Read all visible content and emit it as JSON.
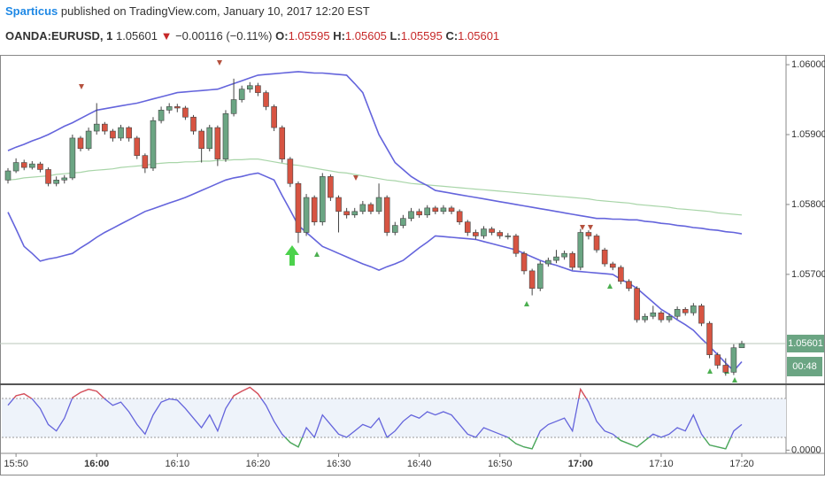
{
  "header": {
    "author": "Sparticus",
    "published": "published on TradingView.com, January 10, 2017 12:20 EST",
    "symbol": "OANDA:EURUSD, 1",
    "last": "1.05601",
    "arrow": "▼",
    "change": "−0.00116 (−0.11%)",
    "o_label": "O:",
    "o": "1.05595",
    "h_label": "H:",
    "h": "1.05605",
    "l_label": "L:",
    "l": "1.05595",
    "c_label": "C:",
    "c": "1.05601",
    "countdown": "00:48"
  },
  "chart_data": {
    "type": "candlestick",
    "up_color": "#6ba583",
    "down_color": "#d75442",
    "categories": [
      null,
      "15:50",
      null,
      null,
      null,
      null,
      null,
      null,
      null,
      null,
      null,
      "16:00",
      null,
      null,
      null,
      null,
      null,
      null,
      null,
      null,
      null,
      "16:10",
      null,
      null,
      null,
      null,
      null,
      null,
      null,
      null,
      null,
      "16:20",
      null,
      null,
      null,
      null,
      null,
      null,
      null,
      null,
      null,
      "16:30",
      null,
      null,
      null,
      null,
      null,
      null,
      null,
      null,
      null,
      "16:40",
      null,
      null,
      null,
      null,
      null,
      null,
      null,
      null,
      null,
      "16:50",
      null,
      null,
      null,
      null,
      null,
      null,
      null,
      null,
      null,
      "17:00",
      null,
      null,
      null,
      null,
      null,
      null,
      null,
      null,
      null,
      "17:10",
      null,
      null,
      null,
      null,
      null,
      null,
      null,
      null,
      null,
      "17:20"
    ],
    "open": [
      1.05835,
      1.05848,
      1.0586,
      1.05853,
      1.05858,
      1.0585,
      1.0583,
      1.05835,
      1.05838,
      1.05895,
      1.0588,
      1.05905,
      1.05915,
      1.05905,
      1.05895,
      1.0591,
      1.05895,
      1.0587,
      1.05852,
      1.0592,
      1.05935,
      1.0594,
      1.05938,
      1.05925,
      1.05905,
      1.0588,
      1.0591,
      1.05865,
      1.0593,
      1.0595,
      1.05965,
      1.0597,
      1.0596,
      1.0594,
      1.0591,
      1.05865,
      1.0583,
      1.0576,
      1.0581,
      1.05775,
      1.0584,
      1.0581,
      1.0579,
      1.05785,
      1.0579,
      1.058,
      1.0579,
      1.0581,
      1.0576,
      1.0577,
      1.0578,
      1.0579,
      1.05785,
      1.05795,
      1.0579,
      1.05795,
      1.0579,
      1.05775,
      1.0576,
      1.05755,
      1.05765,
      1.0576,
      1.05755,
      1.05755,
      1.0573,
      1.05705,
      1.0568,
      1.05715,
      1.0572,
      1.05725,
      1.0573,
      1.0571,
      1.0576,
      1.05755,
      1.05735,
      1.05715,
      1.0571,
      1.0569,
      1.0568,
      1.05635,
      1.0564,
      1.05645,
      1.05635,
      1.0564,
      1.0565,
      1.05645,
      1.05655,
      1.0563,
      1.05585,
      1.0557,
      1.0556,
      1.05595
    ],
    "high": [
      1.05852,
      1.05866,
      1.05864,
      1.05862,
      1.05861,
      1.05853,
      1.0584,
      1.05842,
      1.059,
      1.05898,
      1.0591,
      1.05945,
      1.05918,
      1.05908,
      1.05914,
      1.05912,
      1.05898,
      1.05873,
      1.05925,
      1.0594,
      1.05945,
      1.05944,
      1.05941,
      1.05928,
      1.05908,
      1.05914,
      1.05913,
      1.05935,
      1.0598,
      1.0597,
      1.05975,
      1.05974,
      1.05963,
      1.05943,
      1.05913,
      1.05868,
      1.05833,
      1.05815,
      1.05813,
      1.05845,
      1.05843,
      1.05813,
      1.05795,
      1.05795,
      1.05805,
      1.05803,
      1.0583,
      1.05813,
      1.05775,
      1.05785,
      1.05795,
      1.05794,
      1.05799,
      1.05798,
      1.05799,
      1.05798,
      1.05793,
      1.05778,
      1.05764,
      1.05769,
      1.05768,
      1.05763,
      1.05759,
      1.05758,
      1.05733,
      1.05708,
      1.05719,
      1.05724,
      1.05735,
      1.05734,
      1.05733,
      1.05765,
      1.05763,
      1.05758,
      1.05738,
      1.05718,
      1.05713,
      1.05693,
      1.05683,
      1.05644,
      1.05655,
      1.05648,
      1.05644,
      1.05654,
      1.05653,
      1.05659,
      1.05658,
      1.05633,
      1.05588,
      1.0558,
      1.056,
      1.05605
    ],
    "low": [
      1.0583,
      1.05845,
      1.05849,
      1.0585,
      1.05846,
      1.05826,
      1.05826,
      1.0583,
      1.05835,
      1.05876,
      1.05877,
      1.059,
      1.059,
      1.0589,
      1.05891,
      1.0589,
      1.05865,
      1.05845,
      1.05848,
      1.05916,
      1.0593,
      1.05932,
      1.05921,
      1.059,
      1.0586,
      1.05876,
      1.05855,
      1.05861,
      1.05926,
      1.05946,
      1.0596,
      1.05955,
      1.05935,
      1.05905,
      1.0586,
      1.05825,
      1.05745,
      1.05755,
      1.0577,
      1.0577,
      1.05805,
      1.0576,
      1.0578,
      1.05781,
      1.05786,
      1.05786,
      1.05786,
      1.05755,
      1.05756,
      1.05766,
      1.05776,
      1.05781,
      1.05781,
      1.05786,
      1.05786,
      1.05786,
      1.05771,
      1.05755,
      1.0575,
      1.05751,
      1.05756,
      1.05751,
      1.0575,
      1.05725,
      1.057,
      1.0567,
      1.05676,
      1.05711,
      1.05716,
      1.05721,
      1.05706,
      1.05706,
      1.0575,
      1.05731,
      1.05711,
      1.05706,
      1.05686,
      1.05676,
      1.05631,
      1.05631,
      1.05636,
      1.05631,
      1.05631,
      1.05636,
      1.05641,
      1.05641,
      1.05626,
      1.0558,
      1.05565,
      1.05555,
      1.05556,
      1.05595
    ],
    "close": [
      1.05848,
      1.0586,
      1.05853,
      1.05858,
      1.0585,
      1.0583,
      1.05835,
      1.05838,
      1.05895,
      1.0588,
      1.05905,
      1.05915,
      1.05905,
      1.05895,
      1.0591,
      1.05895,
      1.0587,
      1.05852,
      1.0592,
      1.05935,
      1.0594,
      1.05938,
      1.05925,
      1.05905,
      1.0588,
      1.0591,
      1.05865,
      1.0593,
      1.0595,
      1.05965,
      1.0597,
      1.0596,
      1.0594,
      1.0591,
      1.05865,
      1.0583,
      1.0576,
      1.0581,
      1.05775,
      1.0584,
      1.0581,
      1.0579,
      1.05785,
      1.0579,
      1.058,
      1.0579,
      1.0581,
      1.0576,
      1.0577,
      1.0578,
      1.0579,
      1.05785,
      1.05795,
      1.0579,
      1.05795,
      1.0579,
      1.05775,
      1.0576,
      1.05755,
      1.05765,
      1.0576,
      1.05755,
      1.05755,
      1.0573,
      1.05705,
      1.0568,
      1.05715,
      1.0572,
      1.05725,
      1.0573,
      1.0571,
      1.0576,
      1.05755,
      1.05735,
      1.05715,
      1.0571,
      1.0569,
      1.0568,
      1.05635,
      1.0564,
      1.05645,
      1.05635,
      1.0564,
      1.0565,
      1.05645,
      1.05655,
      1.0563,
      1.05585,
      1.0557,
      1.0556,
      1.05595,
      1.05601
    ],
    "lines": [
      {
        "color": "#a8d5a8",
        "values": [
          1.05835,
          1.05836,
          1.05838,
          1.05839,
          1.0584,
          1.05841,
          1.05843,
          1.05844,
          1.05845,
          1.05846,
          1.05848,
          1.05849,
          1.0585,
          1.05851,
          1.05853,
          1.05854,
          1.05855,
          1.05856,
          1.05858,
          1.05859,
          1.0586,
          1.0586,
          1.05861,
          1.05861,
          1.05862,
          1.05862,
          1.05863,
          1.05863,
          1.05864,
          1.05864,
          1.05865,
          1.05865,
          1.05863,
          1.05861,
          1.05859,
          1.05857,
          1.05856,
          1.05854,
          1.05852,
          1.0585,
          1.05848,
          1.05846,
          1.05845,
          1.05843,
          1.05841,
          1.05839,
          1.05837,
          1.05835,
          1.05834,
          1.05832,
          1.0583,
          1.05829,
          1.05828,
          1.05827,
          1.05826,
          1.05825,
          1.05824,
          1.05823,
          1.05822,
          1.05821,
          1.0582,
          1.05819,
          1.05818,
          1.05817,
          1.05816,
          1.05815,
          1.05814,
          1.05813,
          1.05812,
          1.05811,
          1.0581,
          1.05809,
          1.05808,
          1.05806,
          1.05805,
          1.05804,
          1.05803,
          1.05802,
          1.058,
          1.05799,
          1.05798,
          1.05797,
          1.05796,
          1.05794,
          1.05793,
          1.05792,
          1.05791,
          1.0579,
          1.05788,
          1.05787,
          1.05786,
          1.05785
        ]
      },
      {
        "color": "#6464dc",
        "values": [
          1.05877,
          1.05882,
          1.05886,
          1.05891,
          1.05895,
          1.059,
          1.05906,
          1.05912,
          1.05917,
          1.05923,
          1.05929,
          1.05935,
          1.05937,
          1.05939,
          1.05941,
          1.05943,
          1.05945,
          1.05948,
          1.05951,
          1.05954,
          1.05957,
          1.0596,
          1.05961,
          1.05962,
          1.05963,
          1.05964,
          1.05965,
          1.05969,
          1.05973,
          1.05977,
          1.05981,
          1.05985,
          1.05986,
          1.05987,
          1.05988,
          1.05989,
          1.0599,
          1.05989,
          1.05988,
          1.05988,
          1.05987,
          1.05986,
          1.05985,
          1.05973,
          1.0596,
          1.0593,
          1.059,
          1.0588,
          1.0586,
          1.0585,
          1.0584,
          1.05833,
          1.05827,
          1.0582,
          1.05818,
          1.05816,
          1.05814,
          1.05812,
          1.0581,
          1.05808,
          1.05806,
          1.05804,
          1.05802,
          1.058,
          1.05798,
          1.05796,
          1.05794,
          1.05792,
          1.0579,
          1.05788,
          1.05786,
          1.05784,
          1.05782,
          1.0578,
          1.0578,
          1.05779,
          1.05779,
          1.05778,
          1.05778,
          1.05776,
          1.05775,
          1.05773,
          1.05772,
          1.0577,
          1.05769,
          1.05767,
          1.05766,
          1.05764,
          1.05763,
          1.05761,
          1.0576,
          1.05758
        ]
      },
      {
        "color": "#6464dc",
        "values": [
          1.05789,
          1.05765,
          1.0574,
          1.0573,
          1.05719,
          1.05722,
          1.05724,
          1.05727,
          1.0573,
          1.05738,
          1.05745,
          1.05753,
          1.0576,
          1.05766,
          1.05772,
          1.05778,
          1.05784,
          1.0579,
          1.05794,
          1.05798,
          1.05802,
          1.05806,
          1.0581,
          1.05815,
          1.0582,
          1.05825,
          1.0583,
          1.05835,
          1.05838,
          1.0584,
          1.05843,
          1.05845,
          1.0584,
          1.05835,
          1.05813,
          1.05792,
          1.0577,
          1.0576,
          1.0575,
          1.0574,
          1.05735,
          1.0573,
          1.05725,
          1.0572,
          1.05715,
          1.05711,
          1.05706,
          1.05711,
          1.05715,
          1.0572,
          1.05729,
          1.05738,
          1.05746,
          1.05755,
          1.05754,
          1.05753,
          1.05752,
          1.05751,
          1.0575,
          1.05747,
          1.05744,
          1.05741,
          1.05738,
          1.05735,
          1.0573,
          1.05725,
          1.0572,
          1.05716,
          1.05713,
          1.05709,
          1.05705,
          1.05704,
          1.05703,
          1.05702,
          1.05701,
          1.057,
          1.05693,
          1.05687,
          1.0568,
          1.0567,
          1.0566,
          1.0565,
          1.05643,
          1.05635,
          1.05628,
          1.0562,
          1.05608,
          1.05597,
          1.05585,
          1.05573,
          1.05562,
          1.05575
        ]
      }
    ],
    "ylim": [
      1.05544,
      1.06014
    ],
    "yticks": [
      {
        "value": 1.057,
        "label": "1.05700"
      },
      {
        "value": 1.058,
        "label": "1.05800"
      },
      {
        "value": 1.059,
        "label": "1.05900"
      },
      {
        "value": 1.06,
        "label": "1.06000"
      }
    ],
    "grid": false,
    "oscillator": {
      "color": "#6464dc",
      "high_color": "#e05050",
      "low_color": "#4caf50",
      "ylim": [
        -0.05,
        1.0
      ],
      "yticks": [
        {
          "value": 0,
          "label": "0.0000"
        }
      ],
      "values": [
        0.7,
        0.85,
        0.88,
        0.8,
        0.65,
        0.4,
        0.3,
        0.5,
        0.82,
        0.9,
        0.95,
        0.92,
        0.8,
        0.7,
        0.75,
        0.6,
        0.4,
        0.25,
        0.55,
        0.75,
        0.8,
        0.78,
        0.65,
        0.5,
        0.35,
        0.55,
        0.3,
        0.65,
        0.85,
        0.92,
        0.98,
        0.88,
        0.7,
        0.45,
        0.25,
        0.12,
        0.05,
        0.35,
        0.2,
        0.55,
        0.4,
        0.25,
        0.2,
        0.3,
        0.4,
        0.35,
        0.5,
        0.2,
        0.3,
        0.45,
        0.55,
        0.5,
        0.6,
        0.55,
        0.6,
        0.55,
        0.4,
        0.25,
        0.2,
        0.35,
        0.3,
        0.25,
        0.2,
        0.1,
        0.05,
        0.02,
        0.3,
        0.4,
        0.45,
        0.5,
        0.3,
        0.95,
        0.75,
        0.45,
        0.3,
        0.25,
        0.15,
        0.1,
        0.05,
        0.15,
        0.25,
        0.2,
        0.25,
        0.35,
        0.3,
        0.55,
        0.25,
        0.08,
        0.05,
        0.02,
        0.3,
        0.4
      ]
    }
  }
}
